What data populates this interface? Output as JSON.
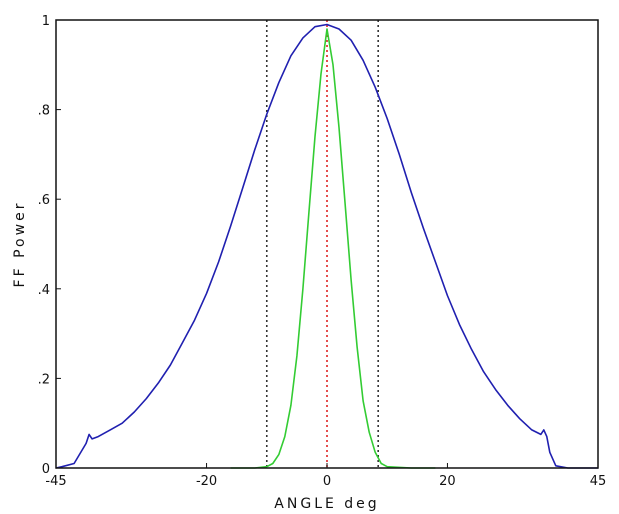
{
  "chart_data": {
    "type": "line",
    "title": "",
    "xlabel": "ANGLE deg",
    "ylabel": "FF Power",
    "xlim": [
      -45,
      45
    ],
    "ylim": [
      0,
      1
    ],
    "x_ticks": [
      -45,
      -20,
      0,
      20,
      45
    ],
    "x_tick_labels": [
      "-45",
      "-20",
      "0",
      "20",
      "45"
    ],
    "y_ticks": [
      0,
      0.2,
      0.4,
      0.6,
      0.8,
      1
    ],
    "y_tick_labels": [
      "0",
      ".2",
      ".4",
      ".6",
      ".8",
      "1"
    ],
    "grid": false,
    "legend": "none",
    "series": [
      {
        "color": "#2020b0",
        "x": [
          -45,
          -44,
          -42,
          -40,
          -39.5,
          -39,
          -38,
          -36,
          -34,
          -32,
          -30,
          -28,
          -26,
          -24,
          -22,
          -20,
          -18,
          -16,
          -14,
          -12,
          -10,
          -8,
          -6,
          -4,
          -2,
          0,
          2,
          4,
          6,
          8,
          10,
          12,
          14,
          16,
          18,
          20,
          22,
          24,
          26,
          28,
          30,
          32,
          34,
          35.5,
          36,
          36.5,
          37,
          38,
          40,
          45
        ],
        "y": [
          0,
          0.003,
          0.01,
          0.055,
          0.075,
          0.065,
          0.07,
          0.085,
          0.1,
          0.125,
          0.155,
          0.19,
          0.23,
          0.28,
          0.33,
          0.39,
          0.46,
          0.54,
          0.625,
          0.71,
          0.79,
          0.86,
          0.92,
          0.96,
          0.985,
          0.99,
          0.98,
          0.955,
          0.91,
          0.85,
          0.78,
          0.7,
          0.615,
          0.535,
          0.46,
          0.385,
          0.32,
          0.265,
          0.215,
          0.175,
          0.14,
          0.11,
          0.085,
          0.075,
          0.085,
          0.07,
          0.035,
          0.005,
          0,
          0
        ]
      },
      {
        "color": "#33cc33",
        "x": [
          -16,
          -12,
          -10,
          -9,
          -8,
          -7,
          -6,
          -5,
          -4,
          -3,
          -2,
          -1,
          0,
          1,
          2,
          3,
          4,
          5,
          6,
          7,
          8,
          9,
          10,
          14,
          18
        ],
        "y": [
          0,
          0,
          0.003,
          0.01,
          0.03,
          0.07,
          0.14,
          0.25,
          0.4,
          0.57,
          0.74,
          0.88,
          0.98,
          0.9,
          0.76,
          0.59,
          0.42,
          0.27,
          0.15,
          0.08,
          0.035,
          0.01,
          0.003,
          0,
          0
        ]
      }
    ],
    "reference_lines": [
      {
        "x": -10,
        "color": "#333333",
        "style": "dotted"
      },
      {
        "x": 0,
        "color": "#dd2222",
        "style": "dotted"
      },
      {
        "x": 8.5,
        "color": "#333333",
        "style": "dotted"
      }
    ]
  }
}
